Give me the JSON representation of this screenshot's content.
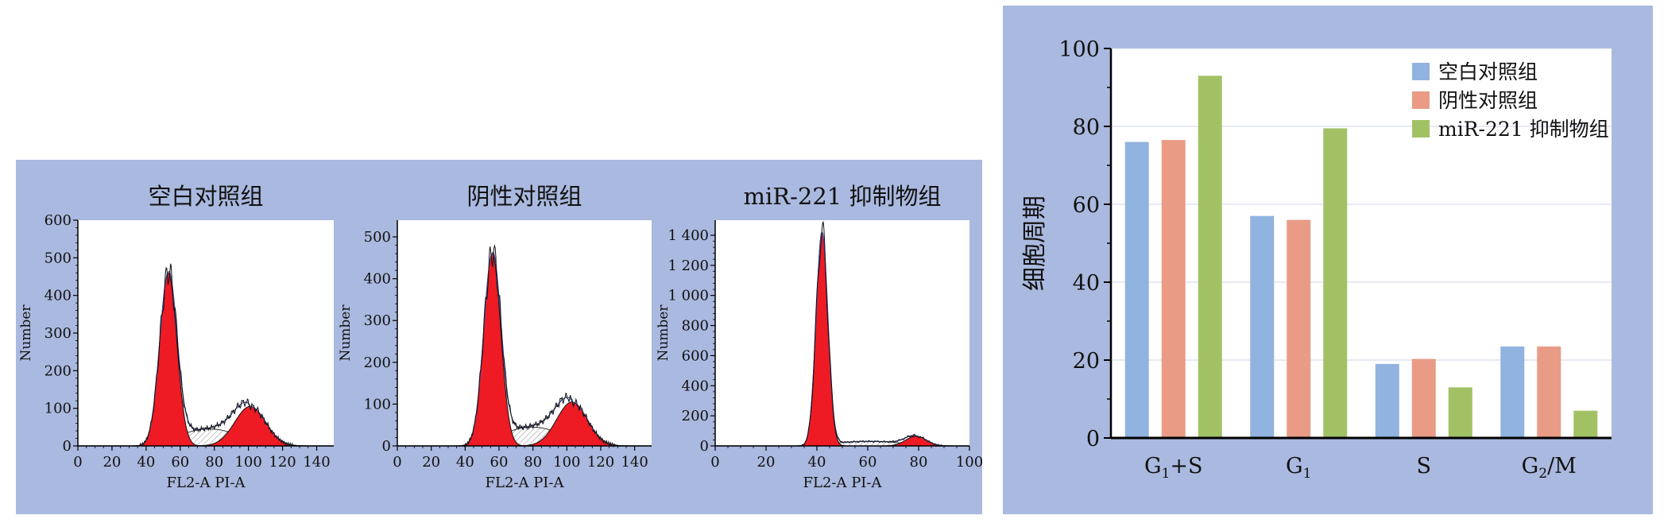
{
  "histograms": [
    {
      "title": "空白对照组",
      "xlabel": "FL2-A PI-A",
      "ylabel": "Number",
      "xlim": [
        0,
        150
      ],
      "xticks": [
        0,
        20,
        40,
        60,
        80,
        100,
        120,
        140
      ],
      "ylim": [
        0,
        600
      ],
      "yticks": [
        0,
        100,
        200,
        300,
        400,
        500,
        600
      ],
      "ytick_labels": [
        "0",
        "100",
        "200",
        "300",
        "400",
        "500",
        "600"
      ],
      "peaks": {
        "g1": {
          "mu": 53,
          "sigma": 5,
          "height": 460
        },
        "g2": {
          "mu": 101,
          "sigma": 9,
          "height": 105
        },
        "s": {
          "from": 53,
          "to": 101,
          "height": 45
        }
      }
    },
    {
      "title": "阴性对照组",
      "xlabel": "FL2-A PI-A",
      "ylabel": "Number",
      "xlim": [
        0,
        150
      ],
      "xticks": [
        0,
        20,
        40,
        60,
        80,
        100,
        120,
        140
      ],
      "ylim": [
        0,
        540
      ],
      "yticks": [
        0,
        100,
        200,
        300,
        400,
        500
      ],
      "ytick_labels": [
        "0",
        "100",
        "200",
        "300",
        "400",
        "500"
      ],
      "peaks": {
        "g1": {
          "mu": 56,
          "sigma": 5,
          "height": 460
        },
        "g2": {
          "mu": 103,
          "sigma": 9,
          "height": 105
        },
        "s": {
          "from": 56,
          "to": 103,
          "height": 45
        }
      }
    },
    {
      "title": "miR-221 抑制物组",
      "xlabel": "FL2-A PI-A",
      "ylabel": "Number",
      "xlim": [
        0,
        100
      ],
      "xticks": [
        0,
        20,
        40,
        60,
        80,
        100
      ],
      "ylim": [
        0,
        1500
      ],
      "yticks": [
        0,
        200,
        400,
        600,
        800,
        1000,
        1200,
        1400
      ],
      "ytick_labels": [
        "0",
        "200",
        "400",
        "600",
        "800",
        "1 000",
        "1 200",
        "1 400"
      ],
      "peaks": {
        "g1": {
          "mu": 42,
          "sigma": 2.3,
          "height": 1420
        },
        "g2": {
          "mu": 79,
          "sigma": 4,
          "height": 65
        },
        "s": {
          "from": 42,
          "to": 79,
          "height": 30
        }
      }
    }
  ],
  "chart_data": {
    "type": "bar",
    "categories": [
      "G1+S",
      "G1",
      "S",
      "G2/M"
    ],
    "category_labels": [
      {
        "main": "G",
        "sub": "1",
        "rest": "+S"
      },
      {
        "main": "G",
        "sub": "1",
        "rest": ""
      },
      {
        "main": "S",
        "sub": "",
        "rest": ""
      },
      {
        "main": "G",
        "sub": "2",
        "rest": "/M"
      }
    ],
    "series": [
      {
        "name": "空白对照组",
        "color": "#91b3df",
        "values": [
          76,
          57,
          19,
          23.5
        ]
      },
      {
        "name": "阴性对照组",
        "color": "#e99b86",
        "values": [
          76.5,
          56,
          20.3,
          23.5
        ]
      },
      {
        "name": "miR-221 抑制物组",
        "color": "#a2c165",
        "values": [
          93,
          79.5,
          13,
          7
        ]
      }
    ],
    "ylabel": "细胞周期",
    "ylim": [
      0,
      100
    ],
    "yticks": [
      0,
      20,
      40,
      60,
      80,
      100
    ],
    "grid": true,
    "legend": "top-right"
  }
}
